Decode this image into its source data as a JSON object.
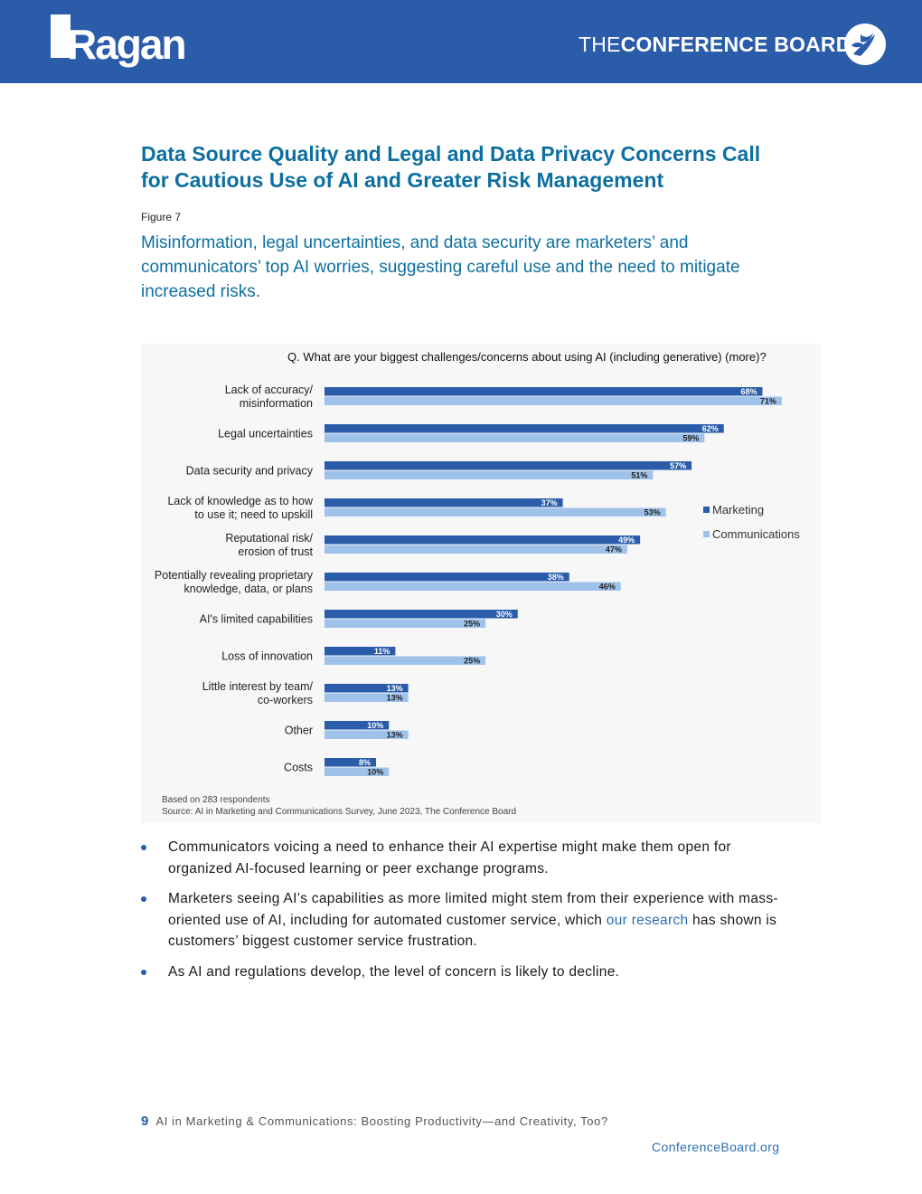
{
  "header": {
    "ragan_logo_text": "Ragan",
    "conference_board_prefix": "THE",
    "conference_board_name": "CONFERENCE BOARD"
  },
  "section_title": "Data Source Quality and Legal and Data Privacy Concerns Call for Cautious Use of AI and Greater Risk Management",
  "figure_label": "Figure 7",
  "figure_subtitle": "Misinformation, legal uncertainties, and data security are marketers’ and communicators’ top AI worries, suggesting careful use and the need to mitigate increased risks.",
  "chart_data": {
    "type": "bar",
    "orientation": "horizontal",
    "title": "Q.  What are your biggest challenges/concerns about using AI (including generative) (more)?",
    "categories": [
      [
        "Lack of accuracy/",
        "misinformation"
      ],
      [
        "Legal uncertainties"
      ],
      [
        "Data security and privacy"
      ],
      [
        "Lack of knowledge as to how",
        "to use it; need to upskill"
      ],
      [
        "Reputational risk/",
        "erosion of trust"
      ],
      [
        "Potentially revealing proprietary",
        "knowledge, data, or plans"
      ],
      [
        "AI's limited capabilities"
      ],
      [
        "Loss of innovation"
      ],
      [
        "Little interest by team/",
        "co-workers"
      ],
      [
        "Other"
      ],
      [
        "Costs"
      ]
    ],
    "series": [
      {
        "name": "Marketing",
        "color": "#2a5caa",
        "values": [
          68,
          62,
          57,
          37,
          49,
          38,
          30,
          11,
          13,
          10,
          8
        ]
      },
      {
        "name": "Communications",
        "color": "#9fc2eb",
        "values": [
          71,
          59,
          51,
          53,
          47,
          46,
          25,
          25,
          13,
          13,
          10
        ]
      }
    ],
    "value_suffix": "%",
    "legend_placement": "right",
    "xlim": [
      0,
      80
    ],
    "grid": false,
    "notes": [
      "Based on 283 respondents",
      "Source: AI in Marketing and Communications Survey, June 2023, The Conference Board"
    ]
  },
  "bullets": [
    {
      "text": "Communicators voicing a need to enhance their AI expertise might make them open for organized AI-focused learning or peer exchange programs."
    },
    {
      "text_before": "Marketers seeing AI’s capabilities as more limited might stem from their experience with mass-oriented use of AI, including for automated customer service, which ",
      "link_text": "our research",
      "text_after": " has shown is customers’ biggest customer service frustration."
    },
    {
      "text": "As AI and regulations develop, the level of concern is likely to decline."
    }
  ],
  "footer": {
    "page_number": "9",
    "doc_title": "AI in Marketing & Communications: Boosting Productivity—and Creativity, Too?",
    "site": "ConferenceBoard.org"
  }
}
